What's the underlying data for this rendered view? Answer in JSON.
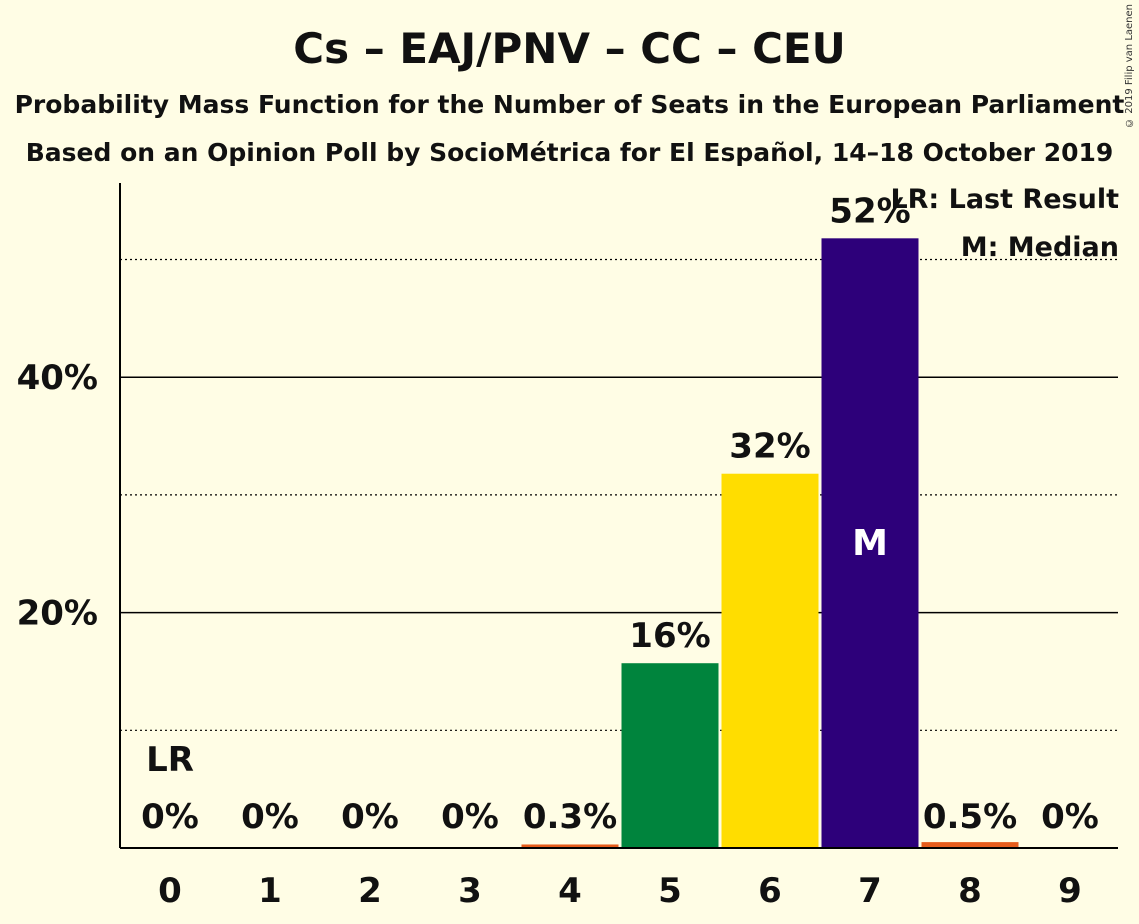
{
  "chart_data": {
    "type": "bar",
    "title": "Cs – EAJ/PNV – CC – CEU",
    "subtitle_lines": [
      "Probability Mass Function for the Number of Seats in the European Parliament",
      "Based on an Opinion Poll by SocioMétrica for El Español, 14–18 October 2019"
    ],
    "copyright": "© 2019 Filip van Laenen",
    "categories": [
      "0",
      "1",
      "2",
      "3",
      "4",
      "5",
      "6",
      "7",
      "8",
      "9"
    ],
    "values": [
      0,
      0,
      0,
      0,
      0.3,
      15.7,
      31.8,
      51.8,
      0.5,
      0
    ],
    "value_labels": [
      "0%",
      "0%",
      "0%",
      "0%",
      "0.3%",
      "16%",
      "32%",
      "52%",
      "0.5%",
      "0%"
    ],
    "bar_colors": [
      "#E55C1C",
      "#E55C1C",
      "#E55C1C",
      "#E55C1C",
      "#E55C1C",
      "#00843D",
      "#FFDD00",
      "#2D007A",
      "#E55C1C",
      "#E55C1C"
    ],
    "y_ticks": [
      {
        "value": 20,
        "label": "20%"
      },
      {
        "value": 40,
        "label": "40%"
      }
    ],
    "minor_gridlines": [
      10,
      30,
      50
    ],
    "ylim": [
      0,
      56.5
    ],
    "last_result": {
      "category": "0",
      "marker": "LR"
    },
    "median": {
      "category": "7",
      "marker": "M"
    },
    "legend": {
      "position": "top-right",
      "last_result": "LR: Last Result",
      "median": "M: Median"
    }
  }
}
